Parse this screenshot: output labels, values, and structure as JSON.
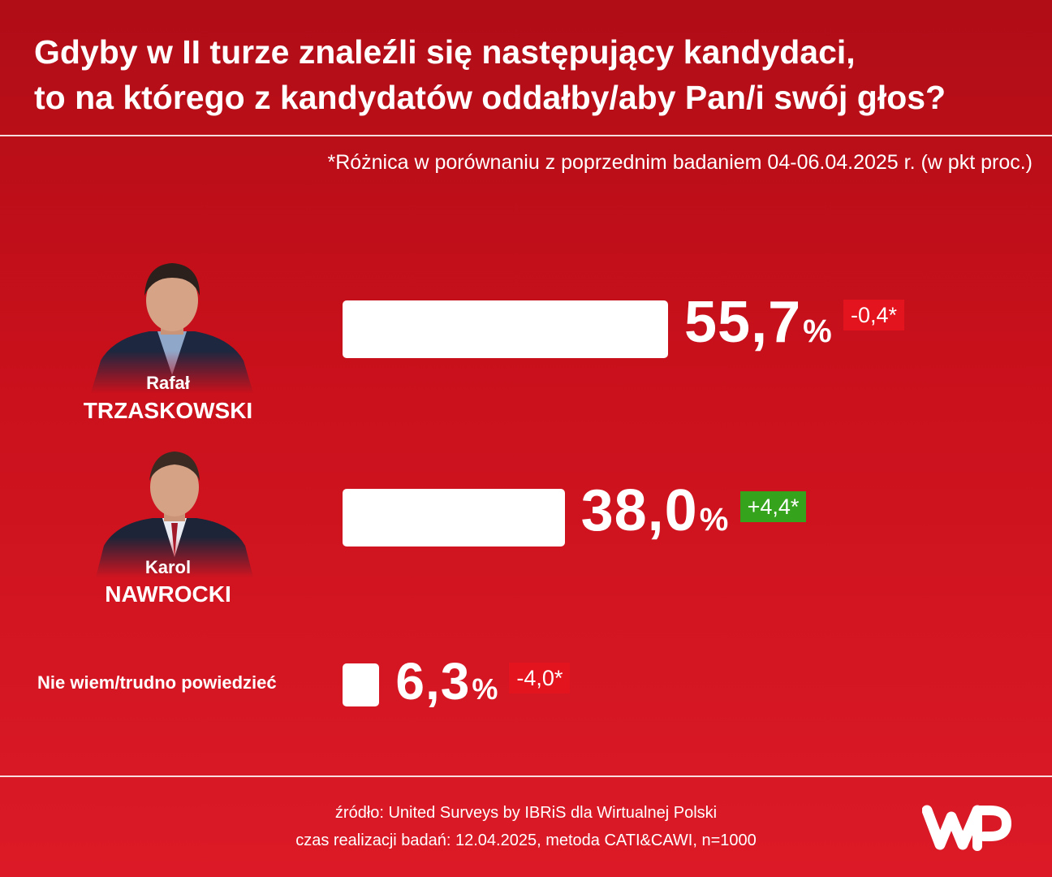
{
  "title": {
    "line1": "Gdyby w II turze znaleźli się następujący kandydaci,",
    "line2": "to na którego z kandydatów oddałby/aby Pan/i swój głos?"
  },
  "note": "*Różnica w porównaniu z poprzednim badaniem 04-06.04.2025 r. (w pkt proc.)",
  "candidates": [
    {
      "first": "Rafał",
      "last": "TRZASKOWSKI"
    },
    {
      "first": "Karol",
      "last": "NAWROCKI"
    }
  ],
  "undecided_label": "Nie wiem/trudno powiedzieć",
  "chart_data": {
    "type": "bar",
    "orientation": "horizontal",
    "categories": [
      "Rafał TRZASKOWSKI",
      "Karol NAWROCKI",
      "Nie wiem/trudno powiedzieć"
    ],
    "values": [
      55.7,
      38.0,
      6.3
    ],
    "value_labels": [
      "55,7",
      "38,0",
      "6,3"
    ],
    "unit": "%",
    "changes": [
      "-0,4*",
      "+4,4*",
      "-4,0*"
    ],
    "change_colors": [
      "#e3141e",
      "#36a31d",
      "#e3141e"
    ],
    "bar_color": "#ffffff"
  },
  "footer": {
    "source": "źródło: United Surveys by IBRiS dla Wirtualnej Polski",
    "details": "czas realizacji badań: 12.04.2025, metoda CATI&CAWI, n=1000"
  },
  "colors": {
    "background_top": "#b00d17",
    "background_bottom": "#dc1a27",
    "text": "#ffffff"
  }
}
